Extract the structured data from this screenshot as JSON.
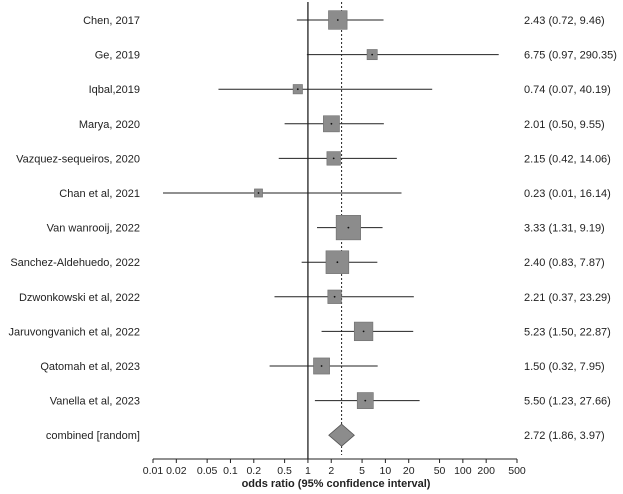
{
  "chart_data": {
    "type": "forest",
    "xlabel": "odds ratio (95% confidence interval)",
    "x_scale": "log",
    "xlim": [
      0.01,
      500
    ],
    "ticks": [
      {
        "value": 0.01,
        "label": "0.01"
      },
      {
        "value": 0.02,
        "label": "0.02"
      },
      {
        "value": 0.05,
        "label": "0.05"
      },
      {
        "value": 0.1,
        "label": "0.1"
      },
      {
        "value": 0.2,
        "label": "0.2"
      },
      {
        "value": 0.5,
        "label": "0.5"
      },
      {
        "value": 1,
        "label": "1"
      },
      {
        "value": 2,
        "label": "2"
      },
      {
        "value": 5,
        "label": "5"
      },
      {
        "value": 10,
        "label": "10"
      },
      {
        "value": 20,
        "label": "20"
      },
      {
        "value": 50,
        "label": "50"
      },
      {
        "value": 100,
        "label": "100"
      },
      {
        "value": 200,
        "label": "200"
      },
      {
        "value": 500,
        "label": "500"
      }
    ],
    "reference_line": 1,
    "pooled_line": 2.72,
    "studies": [
      {
        "label": "Chen, 2017",
        "or": 2.43,
        "lower": 0.72,
        "upper": 9.46,
        "text": "2.43 (0.72, 9.46)",
        "weight": 1.6
      },
      {
        "label": "Ge, 2019",
        "or": 6.75,
        "lower": 0.97,
        "upper": 290.35,
        "text": "6.75 (0.97, 290.35)",
        "weight": 0.6
      },
      {
        "label": "Iqbal,2019",
        "or": 0.74,
        "lower": 0.07,
        "upper": 40.19,
        "text": "0.74 (0.07, 40.19)",
        "weight": 0.5
      },
      {
        "label": "Marya, 2020",
        "or": 2.01,
        "lower": 0.5,
        "upper": 9.55,
        "text": "2.01 (0.50, 9.55)",
        "weight": 1.3
      },
      {
        "label": "Vazquez-sequeiros, 2020",
        "or": 2.15,
        "lower": 0.42,
        "upper": 14.06,
        "text": "2.15 (0.42, 14.06)",
        "weight": 1.0
      },
      {
        "label": "Chan et al, 2021",
        "or": 0.23,
        "lower": 0.01,
        "upper": 16.14,
        "text": "0.23 (0.01, 16.14)",
        "weight": 0.35
      },
      {
        "label": "Van wanrooij, 2022",
        "or": 3.33,
        "lower": 1.31,
        "upper": 9.19,
        "text": "3.33 (1.31, 9.19)",
        "weight": 2.3
      },
      {
        "label": "Sanchez-Aldehuedo, 2022",
        "or": 2.4,
        "lower": 0.83,
        "upper": 7.87,
        "text": "2.40 (0.83, 7.87)",
        "weight": 2.1
      },
      {
        "label": "Dzwonkowski et al, 2022",
        "or": 2.21,
        "lower": 0.37,
        "upper": 23.29,
        "text": "2.21 (0.37, 23.29)",
        "weight": 1.0
      },
      {
        "label": "Jaruvongvanich et al, 2022",
        "or": 5.23,
        "lower": 1.5,
        "upper": 22.87,
        "text": "5.23 (1.50, 22.87)",
        "weight": 1.6
      },
      {
        "label": "Qatomah et al, 2023",
        "or": 1.5,
        "lower": 0.32,
        "upper": 7.95,
        "text": "1.50 (0.32, 7.95)",
        "weight": 1.3
      },
      {
        "label": "Vanella et al, 2023",
        "or": 5.5,
        "lower": 1.23,
        "upper": 27.66,
        "text": "5.50 (1.23, 27.66)",
        "weight": 1.3
      }
    ],
    "combined": {
      "label": "combined [random]",
      "or": 2.72,
      "lower": 1.86,
      "upper": 3.97,
      "text": "2.72 (1.86, 3.97)"
    },
    "colors": {
      "box": "#8c8c8c",
      "line": "#222222",
      "diamond": "#8c8c8c"
    }
  }
}
